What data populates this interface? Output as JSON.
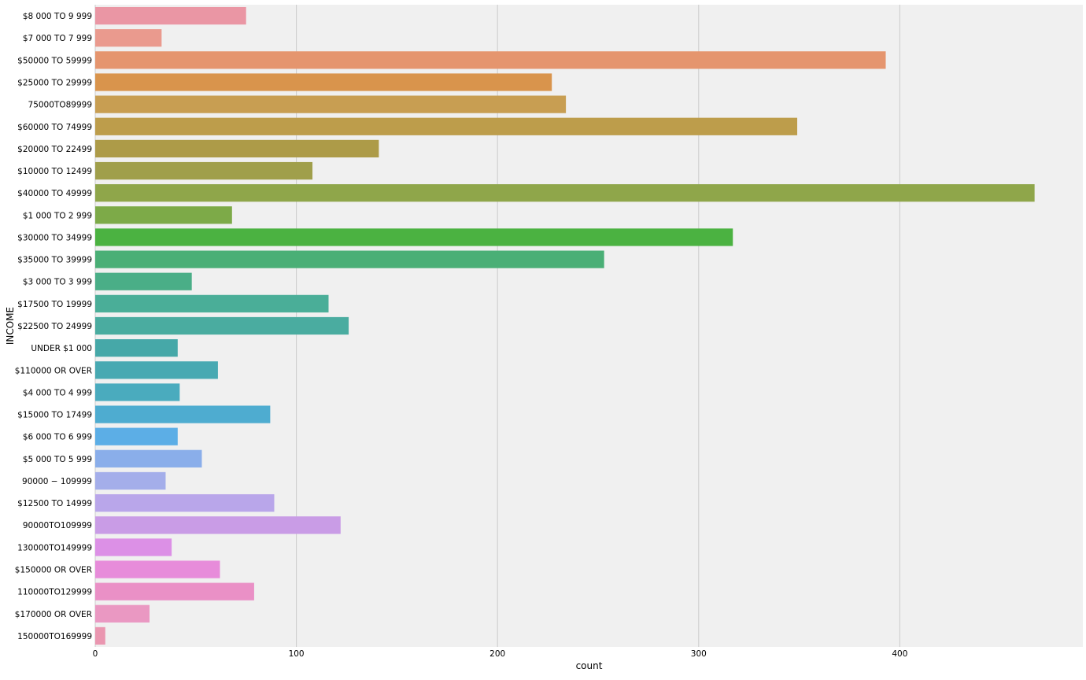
{
  "chart_data": {
    "type": "bar",
    "orientation": "horizontal",
    "xlabel": "count",
    "ylabel": "INCOME",
    "xlim": [
      0,
      491
    ],
    "xticks": [
      0,
      100,
      200,
      300,
      400
    ],
    "grid": true,
    "background": "#f0f0f0",
    "categories": [
      "$8 000 TO 9 999",
      "$7 000 TO 7 999",
      "$50000 TO 59999",
      "$25000 TO 29999",
      "75000TO89999",
      "$60000 TO 74999",
      "$20000 TO 22499",
      "$10000 TO 12499",
      "$40000 TO 49999",
      "$1 000 TO 2 999",
      "$30000 TO 34999",
      "$35000 TO 39999",
      "$3 000 TO 3 999",
      "$17500 TO 19999",
      "$22500 TO 24999",
      "UNDER $1 000",
      "$110000 OR OVER",
      "$4 000 TO 4 999",
      "$15000 TO 17499",
      "$6 000 TO 6 999",
      "$5 000 TO 5 999",
      "90000 − 109999",
      "$12500 TO 14999",
      "90000TO109999",
      "130000TO149999",
      "$150000 OR OVER",
      "110000TO129999",
      "$170000 OR OVER",
      "150000TO169999"
    ],
    "values": [
      75,
      33,
      393,
      227,
      234,
      349,
      141,
      108,
      467,
      68,
      317,
      253,
      48,
      116,
      126,
      41,
      61,
      42,
      87,
      41,
      53,
      35,
      89,
      122,
      38,
      62,
      79,
      27,
      5
    ],
    "colors": [
      "#ea96a4",
      "#ea9a8e",
      "#e5956e",
      "#d9944c",
      "#c89e52",
      "#bd9d4b",
      "#ad9b48",
      "#a09f4b",
      "#8fa64a",
      "#7daa48",
      "#4bb241",
      "#4aaf76",
      "#4aae87",
      "#4aae98",
      "#4aaca0",
      "#46a8a8",
      "#48a9b2",
      "#4aabbe",
      "#4eacd0",
      "#5caee6",
      "#8aaeea",
      "#a4aeea",
      "#b9a6ea",
      "#c99ce6",
      "#dc90e6",
      "#e78cda",
      "#ea90c6",
      "#ea98c2",
      "#ea96b0"
    ]
  }
}
